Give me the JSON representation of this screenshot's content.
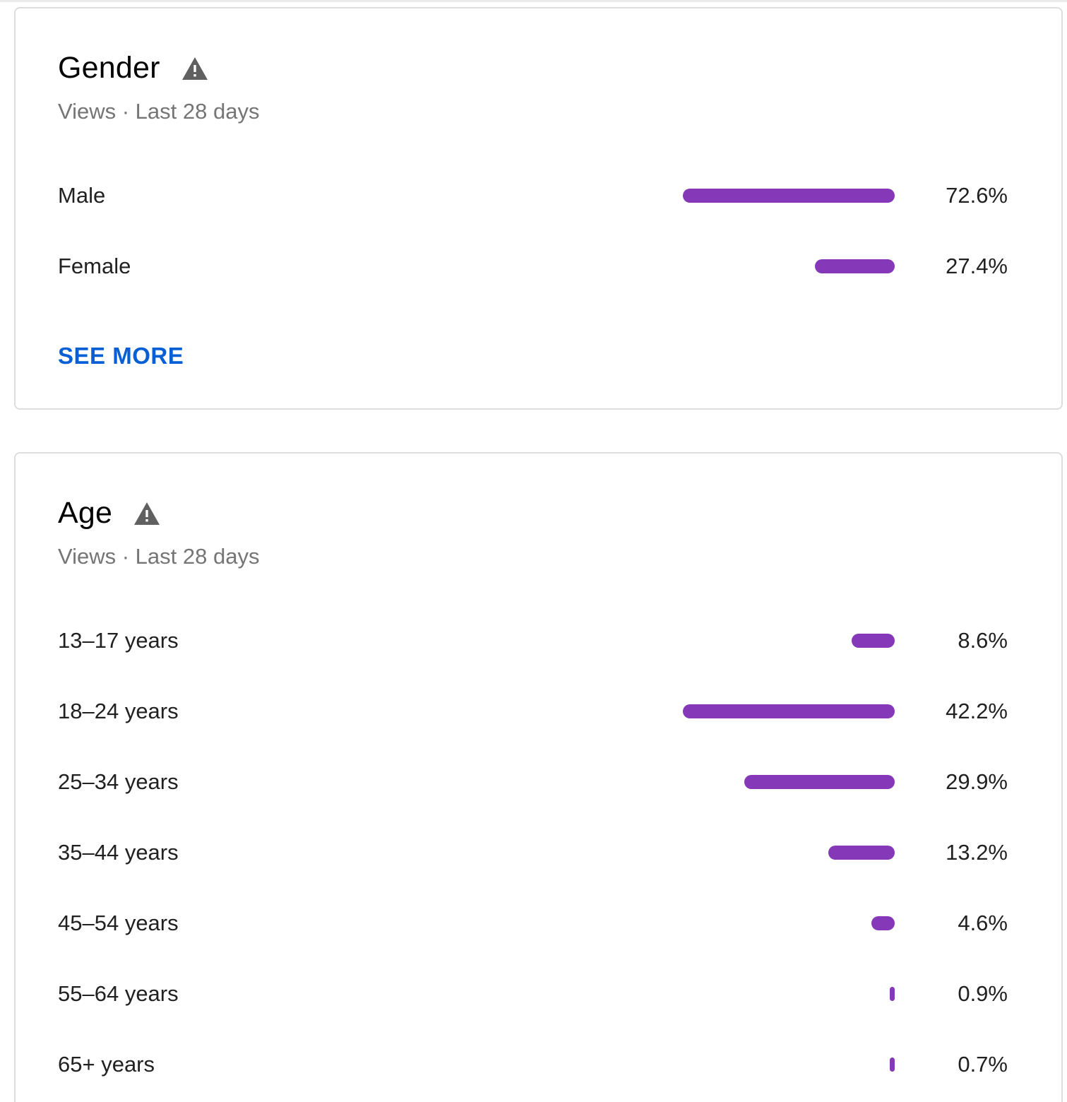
{
  "gender": {
    "title": "Gender",
    "subtitle": "Views · Last 28 days",
    "warning_icon": "warning-triangle-icon",
    "rows": [
      {
        "label": "Male",
        "value": "72.6%",
        "percent": 72.6
      },
      {
        "label": "Female",
        "value": "27.4%",
        "percent": 27.4
      }
    ],
    "see_more_label": "SEE MORE"
  },
  "age": {
    "title": "Age",
    "subtitle": "Views · Last 28 days",
    "warning_icon": "warning-triangle-icon",
    "rows": [
      {
        "label": "13–17 years",
        "value": "8.6%",
        "percent": 8.6
      },
      {
        "label": "18–24 years",
        "value": "42.2%",
        "percent": 42.2
      },
      {
        "label": "25–34 years",
        "value": "29.9%",
        "percent": 29.9
      },
      {
        "label": "35–44 years",
        "value": "13.2%",
        "percent": 13.2
      },
      {
        "label": "45–54 years",
        "value": "4.6%",
        "percent": 4.6
      },
      {
        "label": "55–64 years",
        "value": "0.9%",
        "percent": 0.9
      },
      {
        "label": "65+ years",
        "value": "0.7%",
        "percent": 0.7
      }
    ]
  },
  "colors": {
    "bar": "#8538b8",
    "link": "#065fd4",
    "subtitle": "#757575",
    "icon": "#606060"
  }
}
